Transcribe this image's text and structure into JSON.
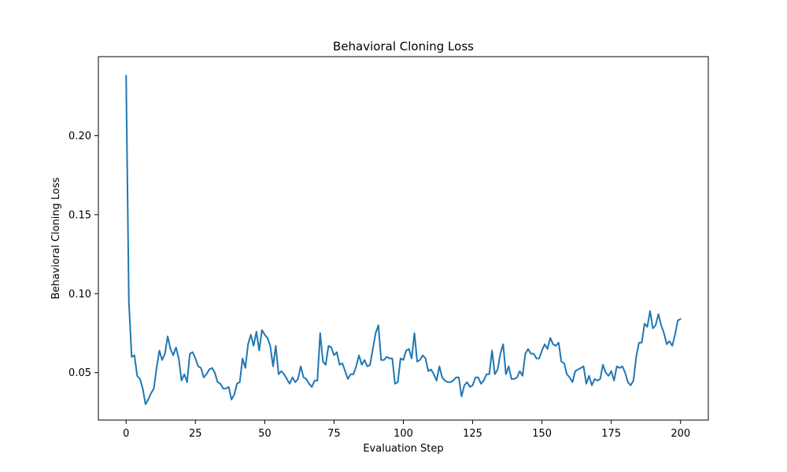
{
  "chart_data": {
    "type": "line",
    "title": "Behavioral Cloning Loss",
    "xlabel": "Evaluation Step",
    "ylabel": "Behavioral Cloning Loss",
    "xlim": [
      -10,
      210
    ],
    "ylim": [
      0.02,
      0.25
    ],
    "xticks": [
      0,
      25,
      50,
      75,
      100,
      125,
      150,
      175,
      200
    ],
    "yticks": [
      0.05,
      0.1,
      0.15,
      0.2
    ],
    "ytick_labels": [
      "0.05",
      "0.10",
      "0.15",
      "0.20"
    ],
    "grid": false,
    "line_color": "#1f77b4",
    "series": [
      {
        "x": [
          0,
          1,
          2,
          3,
          4,
          5,
          6,
          7,
          8,
          9,
          10,
          11,
          12,
          13,
          14,
          15,
          16,
          17,
          18,
          19,
          20,
          21,
          22,
          23,
          24,
          25,
          26,
          27,
          28,
          29,
          30,
          31,
          32,
          33,
          34,
          35,
          36,
          37,
          38,
          39,
          40,
          41,
          42,
          43,
          44,
          45,
          46,
          47,
          48,
          49,
          50,
          51,
          52,
          53,
          54,
          55,
          56,
          57,
          58,
          59,
          60,
          61,
          62,
          63,
          64,
          65,
          66,
          67,
          68,
          69,
          70,
          71,
          72,
          73,
          74,
          75,
          76,
          77,
          78,
          79,
          80,
          81,
          82,
          83,
          84,
          85,
          86,
          87,
          88,
          89,
          90,
          91,
          92,
          93,
          94,
          95,
          96,
          97,
          98,
          99,
          100,
          101,
          102,
          103,
          104,
          105,
          106,
          107,
          108,
          109,
          110,
          111,
          112,
          113,
          114,
          115,
          116,
          117,
          118,
          119,
          120,
          121,
          122,
          123,
          124,
          125,
          126,
          127,
          128,
          129,
          130,
          131,
          132,
          133,
          134,
          135,
          136,
          137,
          138,
          139,
          140,
          141,
          142,
          143,
          144,
          145,
          146,
          147,
          148,
          149,
          150,
          151,
          152,
          153,
          154,
          155,
          156,
          157,
          158,
          159,
          160,
          161,
          162,
          163,
          164,
          165,
          166,
          167,
          168,
          169,
          170,
          171,
          172,
          173,
          174,
          175,
          176,
          177,
          178,
          179,
          180,
          181,
          182,
          183,
          184,
          185,
          186,
          187,
          188,
          189,
          190,
          191,
          192,
          193,
          194,
          195,
          196,
          197,
          198,
          199,
          200
        ],
        "values": [
          0.238,
          0.095,
          0.06,
          0.061,
          0.048,
          0.046,
          0.04,
          0.03,
          0.033,
          0.037,
          0.04,
          0.053,
          0.064,
          0.058,
          0.062,
          0.073,
          0.065,
          0.061,
          0.066,
          0.059,
          0.045,
          0.049,
          0.044,
          0.062,
          0.063,
          0.059,
          0.054,
          0.053,
          0.047,
          0.049,
          0.052,
          0.053,
          0.05,
          0.044,
          0.043,
          0.04,
          0.04,
          0.041,
          0.033,
          0.036,
          0.043,
          0.044,
          0.059,
          0.053,
          0.068,
          0.074,
          0.067,
          0.076,
          0.064,
          0.077,
          0.074,
          0.072,
          0.067,
          0.054,
          0.067,
          0.049,
          0.051,
          0.049,
          0.046,
          0.043,
          0.047,
          0.044,
          0.046,
          0.054,
          0.047,
          0.046,
          0.043,
          0.041,
          0.045,
          0.045,
          0.075,
          0.057,
          0.055,
          0.067,
          0.066,
          0.061,
          0.063,
          0.055,
          0.056,
          0.051,
          0.046,
          0.049,
          0.049,
          0.054,
          0.061,
          0.055,
          0.058,
          0.054,
          0.055,
          0.065,
          0.075,
          0.08,
          0.058,
          0.058,
          0.06,
          0.059,
          0.059,
          0.043,
          0.044,
          0.059,
          0.058,
          0.064,
          0.065,
          0.059,
          0.075,
          0.057,
          0.058,
          0.061,
          0.059,
          0.051,
          0.052,
          0.049,
          0.045,
          0.054,
          0.047,
          0.045,
          0.044,
          0.044,
          0.045,
          0.047,
          0.047,
          0.035,
          0.042,
          0.044,
          0.041,
          0.042,
          0.047,
          0.047,
          0.043,
          0.045,
          0.049,
          0.049,
          0.064,
          0.049,
          0.052,
          0.062,
          0.068,
          0.049,
          0.054,
          0.046,
          0.046,
          0.047,
          0.051,
          0.048,
          0.062,
          0.065,
          0.062,
          0.062,
          0.059,
          0.059,
          0.064,
          0.068,
          0.065,
          0.072,
          0.068,
          0.067,
          0.069,
          0.057,
          0.056,
          0.049,
          0.047,
          0.044,
          0.051,
          0.052,
          0.053,
          0.054,
          0.043,
          0.048,
          0.042,
          0.046,
          0.045,
          0.046,
          0.055,
          0.05,
          0.048,
          0.051,
          0.045,
          0.054,
          0.053,
          0.054,
          0.05,
          0.044,
          0.042,
          0.045,
          0.06,
          0.069,
          0.069,
          0.081,
          0.079,
          0.089,
          0.078,
          0.08,
          0.087,
          0.08,
          0.075,
          0.068,
          0.07,
          0.067,
          0.074,
          0.083,
          0.084
        ]
      }
    ]
  }
}
